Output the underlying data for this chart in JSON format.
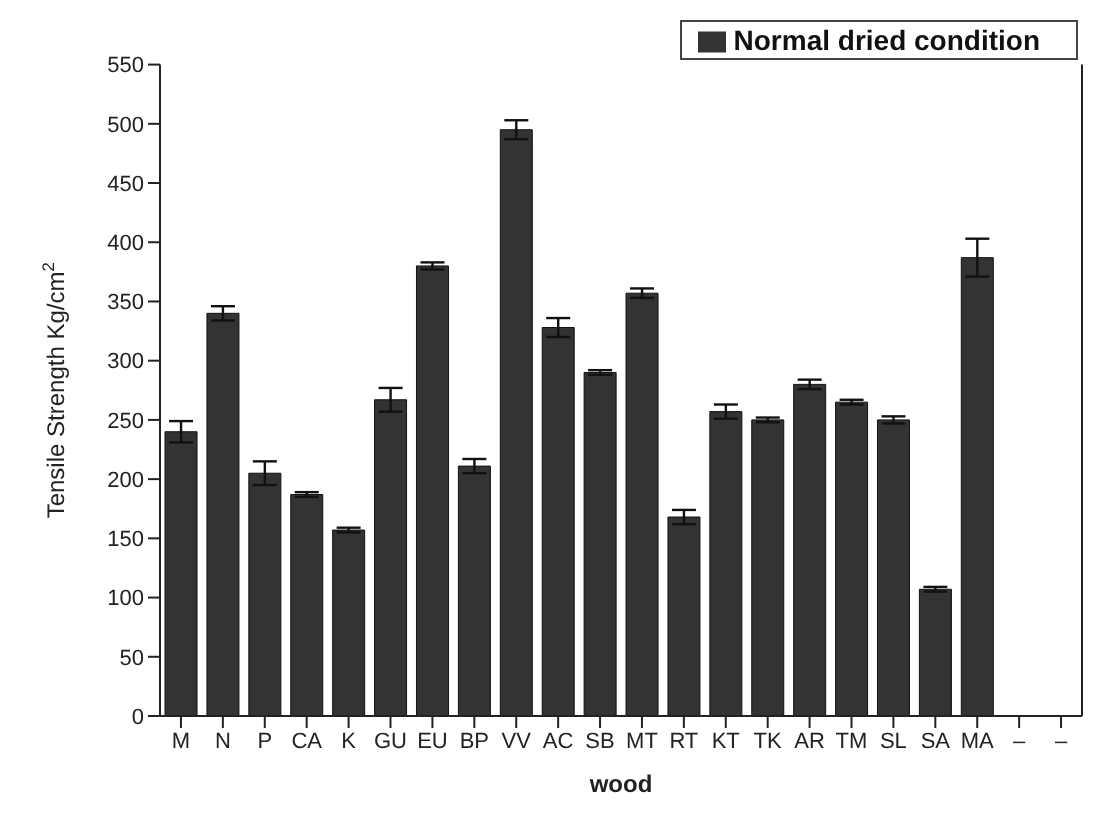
{
  "chart_data": {
    "type": "bar",
    "xlabel": "wood",
    "ylabel": "Tensile Strength Kg/cm$^{2}$",
    "categories": [
      "M",
      "N",
      "P",
      "CA",
      "K",
      "GU",
      "EU",
      "BP",
      "VV",
      "AC",
      "SB",
      "MT",
      "RT",
      "KT",
      "TK",
      "AR",
      "TM",
      "SL",
      "SA",
      "MA",
      "–",
      "–"
    ],
    "series": [
      {
        "name": "Normal dried condition",
        "color": "#333333",
        "values": [
          240,
          340,
          205,
          187,
          157,
          267,
          380,
          211,
          495,
          328,
          290,
          357,
          168,
          257,
          250,
          280,
          265,
          250,
          107,
          387,
          null,
          null
        ],
        "errors": [
          9,
          6,
          10,
          2,
          2,
          10,
          3,
          6,
          8,
          8,
          2,
          4,
          6,
          6,
          2,
          4,
          2,
          3,
          2,
          16,
          null,
          null
        ]
      }
    ],
    "ylim": [
      0,
      550
    ],
    "yticks": [
      0,
      50,
      100,
      150,
      200,
      250,
      300,
      350,
      400,
      450,
      500,
      550
    ],
    "legend": "top right"
  }
}
